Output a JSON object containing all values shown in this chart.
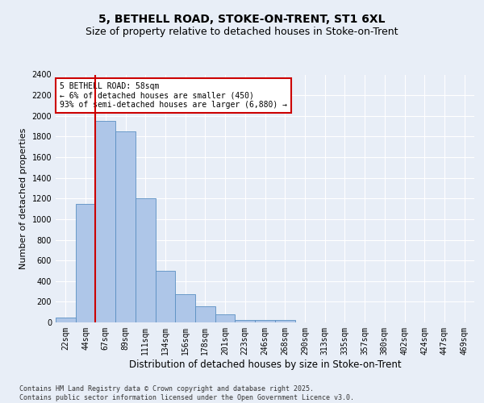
{
  "title_line1": "5, BETHELL ROAD, STOKE-ON-TRENT, ST1 6XL",
  "title_line2": "Size of property relative to detached houses in Stoke-on-Trent",
  "xlabel": "Distribution of detached houses by size in Stoke-on-Trent",
  "ylabel": "Number of detached properties",
  "categories": [
    "22sqm",
    "44sqm",
    "67sqm",
    "89sqm",
    "111sqm",
    "134sqm",
    "156sqm",
    "178sqm",
    "201sqm",
    "223sqm",
    "246sqm",
    "268sqm",
    "290sqm",
    "313sqm",
    "335sqm",
    "357sqm",
    "380sqm",
    "402sqm",
    "424sqm",
    "447sqm",
    "469sqm"
  ],
  "values": [
    50,
    1150,
    1950,
    1850,
    1200,
    500,
    270,
    160,
    80,
    25,
    25,
    20,
    0,
    0,
    0,
    0,
    0,
    0,
    0,
    0,
    0
  ],
  "bar_color": "#aec6e8",
  "bar_edge_color": "#5a8fc2",
  "vline_color": "#cc0000",
  "annotation_text": "5 BETHELL ROAD: 58sqm\n← 6% of detached houses are smaller (450)\n93% of semi-detached houses are larger (6,880) →",
  "annotation_box_color": "#ffffff",
  "annotation_box_edge": "#cc0000",
  "ylim": [
    0,
    2400
  ],
  "yticks": [
    0,
    200,
    400,
    600,
    800,
    1000,
    1200,
    1400,
    1600,
    1800,
    2000,
    2200,
    2400
  ],
  "background_color": "#e8eef7",
  "plot_bg_color": "#e8eef7",
  "grid_color": "#ffffff",
  "footer_text": "Contains HM Land Registry data © Crown copyright and database right 2025.\nContains public sector information licensed under the Open Government Licence v3.0.",
  "title_fontsize": 10,
  "subtitle_fontsize": 9,
  "tick_fontsize": 7,
  "label_fontsize": 8.5,
  "ylabel_fontsize": 8
}
